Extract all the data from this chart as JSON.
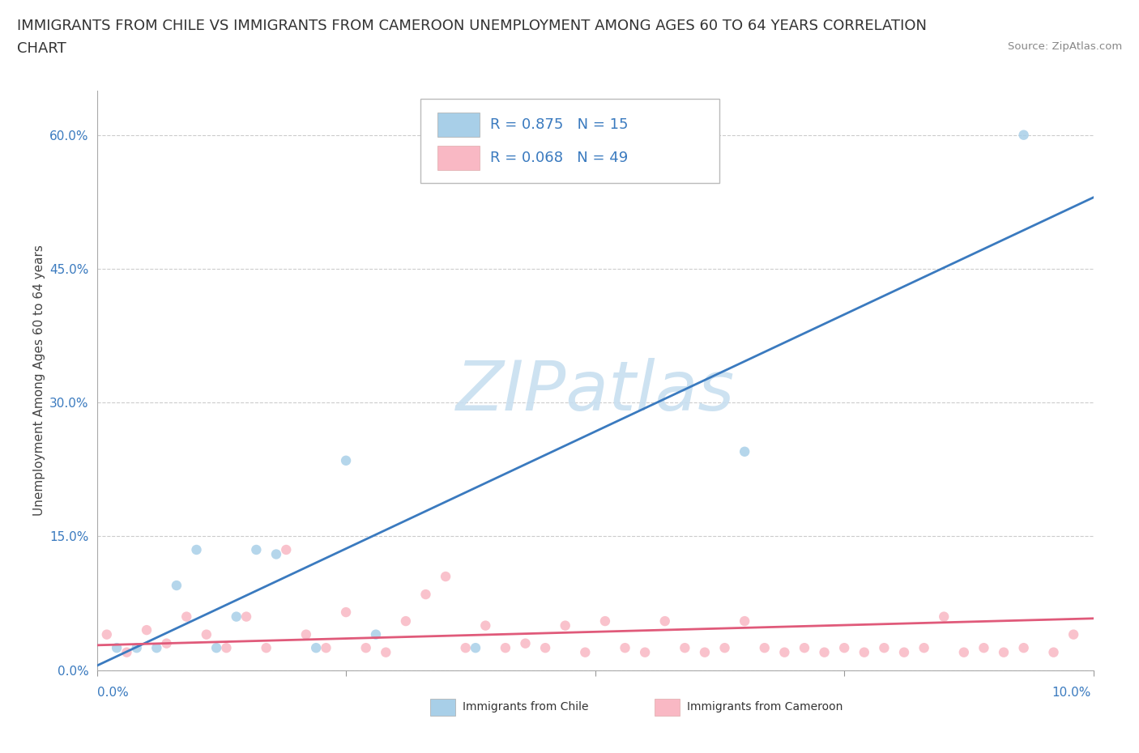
{
  "title_line1": "IMMIGRANTS FROM CHILE VS IMMIGRANTS FROM CAMEROON UNEMPLOYMENT AMONG AGES 60 TO 64 YEARS CORRELATION",
  "title_line2": "CHART",
  "source": "Source: ZipAtlas.com",
  "ylabel": "Unemployment Among Ages 60 to 64 years",
  "xlim": [
    0.0,
    0.1
  ],
  "ylim": [
    0.0,
    0.65
  ],
  "yticks": [
    0.0,
    0.15,
    0.3,
    0.45,
    0.6
  ],
  "ytick_labels": [
    "0.0%",
    "15.0%",
    "30.0%",
    "45.0%",
    "60.0%"
  ],
  "xtick_labels_outside": [
    "0.0%",
    "10.0%"
  ],
  "legend_chile_r": "R = 0.875",
  "legend_chile_n": "N = 15",
  "legend_cameroon_r": "R = 0.068",
  "legend_cameroon_n": "N = 49",
  "chile_color": "#a8cfe8",
  "cameroon_color": "#f9b8c4",
  "chile_line_color": "#3a7abf",
  "cameroon_line_color": "#e05a7a",
  "legend_text_color": "#3a7abf",
  "background_color": "#ffffff",
  "watermark_text": "ZIPatlas",
  "watermark_color": "#c8dff0",
  "chile_scatter_x": [
    0.002,
    0.004,
    0.006,
    0.008,
    0.01,
    0.012,
    0.014,
    0.016,
    0.018,
    0.022,
    0.025,
    0.028,
    0.038,
    0.065,
    0.093
  ],
  "chile_scatter_y": [
    0.025,
    0.025,
    0.025,
    0.095,
    0.135,
    0.025,
    0.06,
    0.135,
    0.13,
    0.025,
    0.235,
    0.04,
    0.025,
    0.245,
    0.6
  ],
  "cameroon_scatter_x": [
    0.001,
    0.003,
    0.005,
    0.007,
    0.009,
    0.011,
    0.013,
    0.015,
    0.017,
    0.019,
    0.021,
    0.023,
    0.025,
    0.027,
    0.029,
    0.031,
    0.033,
    0.035,
    0.037,
    0.039,
    0.041,
    0.043,
    0.045,
    0.047,
    0.049,
    0.051,
    0.053,
    0.055,
    0.057,
    0.059,
    0.061,
    0.063,
    0.065,
    0.067,
    0.069,
    0.071,
    0.073,
    0.075,
    0.077,
    0.079,
    0.081,
    0.083,
    0.085,
    0.087,
    0.089,
    0.091,
    0.093,
    0.096,
    0.098
  ],
  "cameroon_scatter_y": [
    0.04,
    0.02,
    0.045,
    0.03,
    0.06,
    0.04,
    0.025,
    0.06,
    0.025,
    0.135,
    0.04,
    0.025,
    0.065,
    0.025,
    0.02,
    0.055,
    0.085,
    0.105,
    0.025,
    0.05,
    0.025,
    0.03,
    0.025,
    0.05,
    0.02,
    0.055,
    0.025,
    0.02,
    0.055,
    0.025,
    0.02,
    0.025,
    0.055,
    0.025,
    0.02,
    0.025,
    0.02,
    0.025,
    0.02,
    0.025,
    0.02,
    0.025,
    0.06,
    0.02,
    0.025,
    0.02,
    0.025,
    0.02,
    0.04
  ],
  "chile_line_x": [
    0.0,
    0.1
  ],
  "chile_line_y": [
    0.005,
    0.53
  ],
  "cameroon_line_x": [
    0.0,
    0.1
  ],
  "cameroon_line_y": [
    0.028,
    0.058
  ],
  "grid_color": "#cccccc",
  "title_fontsize": 13,
  "label_fontsize": 11,
  "tick_fontsize": 11,
  "legend_fontsize": 13,
  "scatter_size": 80
}
